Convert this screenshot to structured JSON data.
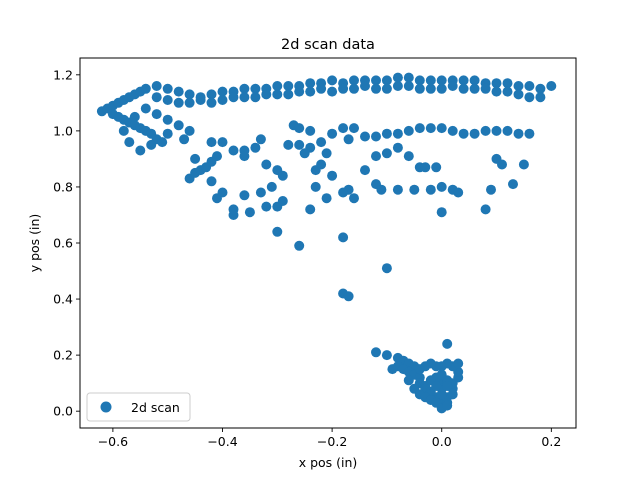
{
  "chart_data": {
    "type": "scatter",
    "title": "2d scan data",
    "xlabel": "x pos (in)",
    "ylabel": "y pos (in)",
    "xlim": [
      -0.66,
      0.245
    ],
    "ylim": [
      -0.06,
      1.26
    ],
    "xticks": [
      -0.6,
      -0.4,
      -0.2,
      0.0,
      0.2
    ],
    "xtick_labels": [
      "−0.6",
      "−0.4",
      "−0.2",
      "0.0",
      "0.2"
    ],
    "yticks": [
      0.0,
      0.2,
      0.4,
      0.6,
      0.8,
      1.0,
      1.2
    ],
    "ytick_labels": [
      "0.0",
      "0.2",
      "0.4",
      "0.6",
      "0.8",
      "1.0",
      "1.2"
    ],
    "grid": false,
    "legend_position": "lower-left",
    "series": [
      {
        "name": "2d scan",
        "color": "#1f77b4",
        "points": [
          [
            -0.62,
            1.07
          ],
          [
            -0.61,
            1.08
          ],
          [
            -0.6,
            1.09
          ],
          [
            -0.59,
            1.1
          ],
          [
            -0.58,
            1.11
          ],
          [
            -0.57,
            1.12
          ],
          [
            -0.56,
            1.13
          ],
          [
            -0.55,
            1.14
          ],
          [
            -0.54,
            1.15
          ],
          [
            -0.52,
            1.16
          ],
          [
            -0.5,
            1.15
          ],
          [
            -0.48,
            1.14
          ],
          [
            -0.46,
            1.13
          ],
          [
            -0.44,
            1.12
          ],
          [
            -0.42,
            1.13
          ],
          [
            -0.4,
            1.14
          ],
          [
            -0.38,
            1.14
          ],
          [
            -0.36,
            1.15
          ],
          [
            -0.34,
            1.15
          ],
          [
            -0.32,
            1.15
          ],
          [
            -0.3,
            1.16
          ],
          [
            -0.28,
            1.16
          ],
          [
            -0.26,
            1.16
          ],
          [
            -0.24,
            1.17
          ],
          [
            -0.22,
            1.17
          ],
          [
            -0.2,
            1.18
          ],
          [
            -0.18,
            1.17
          ],
          [
            -0.16,
            1.18
          ],
          [
            -0.14,
            1.18
          ],
          [
            -0.12,
            1.18
          ],
          [
            -0.1,
            1.18
          ],
          [
            -0.08,
            1.19
          ],
          [
            -0.06,
            1.19
          ],
          [
            -0.04,
            1.18
          ],
          [
            -0.02,
            1.18
          ],
          [
            0.0,
            1.18
          ],
          [
            0.02,
            1.18
          ],
          [
            0.04,
            1.18
          ],
          [
            0.06,
            1.18
          ],
          [
            0.08,
            1.17
          ],
          [
            0.1,
            1.17
          ],
          [
            0.12,
            1.17
          ],
          [
            0.14,
            1.16
          ],
          [
            0.16,
            1.16
          ],
          [
            0.18,
            1.15
          ],
          [
            0.2,
            1.16
          ],
          [
            -0.52,
            1.12
          ],
          [
            -0.5,
            1.11
          ],
          [
            -0.48,
            1.1
          ],
          [
            -0.46,
            1.1
          ],
          [
            -0.44,
            1.11
          ],
          [
            -0.42,
            1.1
          ],
          [
            -0.4,
            1.11
          ],
          [
            -0.38,
            1.12
          ],
          [
            -0.36,
            1.12
          ],
          [
            -0.34,
            1.12
          ],
          [
            -0.32,
            1.13
          ],
          [
            -0.3,
            1.13
          ],
          [
            -0.28,
            1.13
          ],
          [
            -0.26,
            1.14
          ],
          [
            -0.24,
            1.14
          ],
          [
            -0.22,
            1.15
          ],
          [
            -0.2,
            1.14
          ],
          [
            -0.18,
            1.15
          ],
          [
            -0.16,
            1.15
          ],
          [
            -0.14,
            1.16
          ],
          [
            -0.12,
            1.15
          ],
          [
            -0.1,
            1.15
          ],
          [
            -0.08,
            1.16
          ],
          [
            -0.06,
            1.16
          ],
          [
            -0.04,
            1.15
          ],
          [
            -0.02,
            1.15
          ],
          [
            0.0,
            1.15
          ],
          [
            0.02,
            1.16
          ],
          [
            0.04,
            1.15
          ],
          [
            0.06,
            1.15
          ],
          [
            0.08,
            1.15
          ],
          [
            0.1,
            1.14
          ],
          [
            0.12,
            1.14
          ],
          [
            0.14,
            1.13
          ],
          [
            0.16,
            1.12
          ],
          [
            0.18,
            1.12
          ],
          [
            -0.6,
            1.06
          ],
          [
            -0.59,
            1.05
          ],
          [
            -0.58,
            1.04
          ],
          [
            -0.57,
            1.03
          ],
          [
            -0.56,
            1.02
          ],
          [
            -0.55,
            1.01
          ],
          [
            -0.54,
            1.0
          ],
          [
            -0.53,
            0.99
          ],
          [
            -0.52,
            0.97
          ],
          [
            -0.51,
            0.96
          ],
          [
            -0.55,
            0.93
          ],
          [
            -0.53,
            0.95
          ],
          [
            -0.57,
            0.96
          ],
          [
            -0.58,
            1.0
          ],
          [
            -0.56,
            1.05
          ],
          [
            -0.54,
            1.08
          ],
          [
            -0.52,
            1.06
          ],
          [
            -0.5,
            1.04
          ],
          [
            -0.48,
            1.02
          ],
          [
            -0.46,
            1.0
          ],
          [
            -0.5,
            0.99
          ],
          [
            -0.47,
            0.97
          ],
          [
            -0.45,
            0.9
          ],
          [
            -0.46,
            0.83
          ],
          [
            -0.45,
            0.85
          ],
          [
            -0.44,
            0.86
          ],
          [
            -0.43,
            0.87
          ],
          [
            -0.42,
            0.89
          ],
          [
            -0.41,
            0.91
          ],
          [
            -0.42,
            0.82
          ],
          [
            -0.41,
            0.76
          ],
          [
            -0.4,
            0.78
          ],
          [
            -0.38,
            0.7
          ],
          [
            -0.38,
            0.72
          ],
          [
            -0.42,
            0.96
          ],
          [
            -0.4,
            0.96
          ],
          [
            -0.38,
            0.93
          ],
          [
            -0.36,
            0.93
          ],
          [
            -0.34,
            0.94
          ],
          [
            -0.33,
            0.97
          ],
          [
            -0.36,
            0.91
          ],
          [
            -0.32,
            0.88
          ],
          [
            -0.3,
            0.86
          ],
          [
            -0.29,
            0.84
          ],
          [
            -0.31,
            0.8
          ],
          [
            -0.36,
            0.77
          ],
          [
            -0.35,
            0.71
          ],
          [
            -0.33,
            0.78
          ],
          [
            -0.32,
            0.73
          ],
          [
            -0.3,
            0.73
          ],
          [
            -0.29,
            0.75
          ],
          [
            -0.28,
            0.95
          ],
          [
            -0.26,
            0.95
          ],
          [
            -0.25,
            0.92
          ],
          [
            -0.24,
            0.94
          ],
          [
            -0.22,
            0.96
          ],
          [
            -0.21,
            0.92
          ],
          [
            -0.23,
            0.86
          ],
          [
            -0.22,
            0.88
          ],
          [
            -0.2,
            0.84
          ],
          [
            -0.21,
            0.76
          ],
          [
            -0.23,
            0.8
          ],
          [
            -0.24,
            0.72
          ],
          [
            -0.27,
            1.02
          ],
          [
            -0.26,
            1.01
          ],
          [
            -0.24,
            1.0
          ],
          [
            -0.2,
            0.99
          ],
          [
            -0.3,
            0.64
          ],
          [
            -0.26,
            0.59
          ],
          [
            -0.18,
            0.62
          ],
          [
            -0.18,
            1.01
          ],
          [
            -0.16,
            1.01
          ],
          [
            -0.14,
            0.98
          ],
          [
            -0.12,
            0.98
          ],
          [
            -0.1,
            0.99
          ],
          [
            -0.08,
            0.99
          ],
          [
            -0.06,
            1.0
          ],
          [
            -0.04,
            1.01
          ],
          [
            -0.02,
            1.01
          ],
          [
            0.0,
            1.01
          ],
          [
            0.02,
            1.0
          ],
          [
            0.04,
            0.99
          ],
          [
            0.06,
            0.99
          ],
          [
            0.08,
            1.0
          ],
          [
            0.1,
            1.0
          ],
          [
            0.12,
            1.0
          ],
          [
            0.14,
            0.99
          ],
          [
            0.16,
            0.99
          ],
          [
            -0.17,
            0.97
          ],
          [
            -0.12,
            0.91
          ],
          [
            -0.1,
            0.92
          ],
          [
            -0.08,
            0.94
          ],
          [
            -0.06,
            0.91
          ],
          [
            -0.04,
            0.87
          ],
          [
            -0.03,
            0.87
          ],
          [
            -0.01,
            0.87
          ],
          [
            -0.14,
            0.86
          ],
          [
            -0.12,
            0.81
          ],
          [
            -0.11,
            0.79
          ],
          [
            -0.08,
            0.79
          ],
          [
            -0.05,
            0.79
          ],
          [
            -0.02,
            0.79
          ],
          [
            -0.16,
            0.76
          ],
          [
            -0.17,
            0.79
          ],
          [
            -0.18,
            0.78
          ],
          [
            0.0,
            0.8
          ],
          [
            0.02,
            0.79
          ],
          [
            0.03,
            0.78
          ],
          [
            0.0,
            0.71
          ],
          [
            0.08,
            0.72
          ],
          [
            0.09,
            0.79
          ],
          [
            0.13,
            0.81
          ],
          [
            0.1,
            0.9
          ],
          [
            0.11,
            0.88
          ],
          [
            0.15,
            0.88
          ],
          [
            -0.18,
            0.42
          ],
          [
            -0.17,
            0.41
          ],
          [
            -0.1,
            0.51
          ],
          [
            -0.12,
            0.21
          ],
          [
            -0.1,
            0.2
          ],
          [
            -0.08,
            0.19
          ],
          [
            -0.07,
            0.18
          ],
          [
            -0.06,
            0.17
          ],
          [
            -0.05,
            0.16
          ],
          [
            -0.08,
            0.16
          ],
          [
            -0.09,
            0.15
          ],
          [
            -0.07,
            0.15
          ],
          [
            -0.06,
            0.14
          ],
          [
            -0.05,
            0.13
          ],
          [
            -0.04,
            0.12
          ],
          [
            -0.04,
            0.1
          ],
          [
            -0.03,
            0.09
          ],
          [
            -0.03,
            0.08
          ],
          [
            -0.02,
            0.07
          ],
          [
            -0.02,
            0.06
          ],
          [
            -0.01,
            0.05
          ],
          [
            -0.01,
            0.04
          ],
          [
            0.0,
            0.03
          ],
          [
            0.0,
            0.02
          ],
          [
            0.01,
            0.03
          ],
          [
            0.01,
            0.05
          ],
          [
            0.02,
            0.06
          ],
          [
            0.02,
            0.08
          ],
          [
            0.02,
            0.1
          ],
          [
            0.03,
            0.12
          ],
          [
            0.03,
            0.14
          ],
          [
            0.02,
            0.16
          ],
          [
            0.01,
            0.17
          ],
          [
            0.0,
            0.16
          ],
          [
            -0.01,
            0.16
          ],
          [
            -0.02,
            0.17
          ],
          [
            -0.03,
            0.16
          ],
          [
            0.01,
            0.24
          ],
          [
            0.03,
            0.17
          ],
          [
            -0.05,
            0.08
          ],
          [
            -0.04,
            0.06
          ],
          [
            -0.03,
            0.05
          ],
          [
            -0.02,
            0.04
          ],
          [
            -0.01,
            0.03
          ],
          [
            0.0,
            0.01
          ],
          [
            0.01,
            0.02
          ],
          [
            0.0,
            0.06
          ],
          [
            0.0,
            0.1
          ],
          [
            -0.01,
            0.12
          ],
          [
            0.01,
            0.11
          ],
          [
            0.0,
            0.13
          ],
          [
            -0.06,
            0.11
          ],
          [
            -0.04,
            0.15
          ],
          [
            0.0,
            0.08
          ],
          [
            0.01,
            0.09
          ],
          [
            -0.02,
            0.11
          ],
          [
            -0.01,
            0.09
          ]
        ]
      }
    ]
  }
}
